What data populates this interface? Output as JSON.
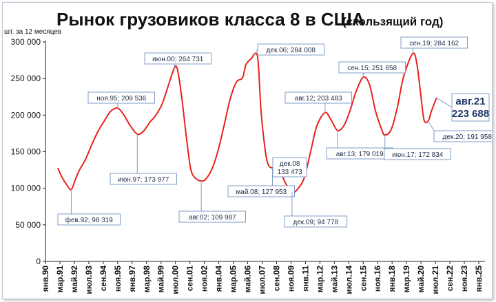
{
  "chart_data": {
    "type": "line",
    "title": "Рынок грузовиков класса 8 в США",
    "subtitle": "(скользящий год)",
    "ylabel": "шт. за 12 месяцев",
    "xlabel": "",
    "ylim": [
      0,
      300000
    ],
    "yticks": [
      "0",
      "50 000",
      "100 000",
      "150 000",
      "200 000",
      "250 000",
      "300 000"
    ],
    "xlim": [
      "1990-01",
      "2025-07"
    ],
    "xticks": [
      "янв.90",
      "мар.91",
      "май.92",
      "июл.93",
      "сен.94",
      "ноя.95",
      "янв.97",
      "мар.98",
      "май.99",
      "июл.00",
      "сен.01",
      "ноя.02",
      "янв.04",
      "мар.05",
      "май.06",
      "июл.07",
      "сен.08",
      "ноя.09",
      "янв.11",
      "мар.12",
      "май.13",
      "июл.14",
      "сен.15",
      "ноя.16",
      "янв.18",
      "мар.19",
      "май.20",
      "июл.21",
      "сен.22",
      "ноя.23",
      "янв.25"
    ],
    "grid": false,
    "legend": "none",
    "series": [
      {
        "color": "#e8211a",
        "points": [
          [
            "1991-01",
            128000
          ],
          [
            "1991-05",
            115000
          ],
          [
            "1991-10",
            104000
          ],
          [
            "1992-02",
            98319
          ],
          [
            "1992-06",
            112000
          ],
          [
            "1992-10",
            125000
          ],
          [
            "1993-04",
            140000
          ],
          [
            "1993-10",
            160000
          ],
          [
            "1994-04",
            178000
          ],
          [
            "1994-10",
            192000
          ],
          [
            "1995-04",
            205000
          ],
          [
            "1995-11",
            209536
          ],
          [
            "1996-05",
            200000
          ],
          [
            "1996-11",
            186000
          ],
          [
            "1997-06",
            173977
          ],
          [
            "1997-12",
            178000
          ],
          [
            "1998-06",
            190000
          ],
          [
            "1998-12",
            200000
          ],
          [
            "1999-06",
            215000
          ],
          [
            "1999-12",
            240000
          ],
          [
            "2000-06",
            264731
          ],
          [
            "2000-09",
            262000
          ],
          [
            "2001-01",
            225000
          ],
          [
            "2001-06",
            165000
          ],
          [
            "2001-10",
            125000
          ],
          [
            "2002-03",
            113000
          ],
          [
            "2002-08",
            109987
          ],
          [
            "2002-12",
            112000
          ],
          [
            "2003-06",
            125000
          ],
          [
            "2003-12",
            150000
          ],
          [
            "2004-06",
            185000
          ],
          [
            "2004-12",
            222000
          ],
          [
            "2005-06",
            245000
          ],
          [
            "2005-12",
            251000
          ],
          [
            "2006-03",
            268000
          ],
          [
            "2006-06",
            274000
          ],
          [
            "2006-09",
            278000
          ],
          [
            "2006-12",
            284008
          ],
          [
            "2007-03",
            275000
          ],
          [
            "2007-06",
            205000
          ],
          [
            "2007-10",
            152000
          ],
          [
            "2008-01",
            132000
          ],
          [
            "2008-05",
            127953
          ],
          [
            "2008-09",
            133000
          ],
          [
            "2008-12",
            133473
          ],
          [
            "2009-04",
            112000
          ],
          [
            "2009-12",
            94778
          ],
          [
            "2010-06",
            100000
          ],
          [
            "2010-12",
            115000
          ],
          [
            "2011-06",
            150000
          ],
          [
            "2011-12",
            185000
          ],
          [
            "2012-08",
            203483
          ],
          [
            "2013-02",
            193000
          ],
          [
            "2013-08",
            179019
          ],
          [
            "2014-02",
            185000
          ],
          [
            "2014-08",
            205000
          ],
          [
            "2015-02",
            232000
          ],
          [
            "2015-09",
            251658
          ],
          [
            "2016-03",
            242000
          ],
          [
            "2016-09",
            205000
          ],
          [
            "2017-03",
            180000
          ],
          [
            "2017-06",
            172834
          ],
          [
            "2017-12",
            180000
          ],
          [
            "2018-06",
            210000
          ],
          [
            "2018-12",
            252000
          ],
          [
            "2019-09",
            284162
          ],
          [
            "2020-01",
            270000
          ],
          [
            "2020-05",
            225000
          ],
          [
            "2020-08",
            193000
          ],
          [
            "2020-12",
            191958
          ],
          [
            "2021-03",
            205000
          ],
          [
            "2021-08",
            223688
          ]
        ]
      }
    ],
    "annotations": [
      {
        "label": "фев.92; 98 319",
        "x": "1992-02",
        "y": 98319
      },
      {
        "label": "ноя.95; 209 536",
        "x": "1995-11",
        "y": 209536
      },
      {
        "label": "июн.97; 173 977",
        "x": "1997-06",
        "y": 173977
      },
      {
        "label": "июн.00; 264 731",
        "x": "2000-06",
        "y": 264731
      },
      {
        "label": "авг.02; 109 987",
        "x": "2002-08",
        "y": 109987
      },
      {
        "label": "дек.06; 284 008",
        "x": "2006-12",
        "y": 284008
      },
      {
        "label": "май.08; 127 953",
        "x": "2008-05",
        "y": 127953
      },
      {
        "label": "дек.08",
        "label2": "133 473",
        "x": "2008-12",
        "y": 133473
      },
      {
        "label": "дек.09; 94 778",
        "x": "2009-12",
        "y": 94778
      },
      {
        "label": "авг.12; 203 483",
        "x": "2012-08",
        "y": 203483
      },
      {
        "label": "авг.13; 179 019",
        "x": "2013-08",
        "y": 179019
      },
      {
        "label": "сен.15; 251 658",
        "x": "2015-09",
        "y": 251658
      },
      {
        "label": "июн.17; 172 834",
        "x": "2017-06",
        "y": 172834
      },
      {
        "label": "сен.19; 284 162",
        "x": "2019-09",
        "y": 284162
      },
      {
        "label": "дек.20; 191 958",
        "x": "2020-12",
        "y": 191958
      }
    ],
    "last_value": {
      "label": "авг.21",
      "value_text": "223 688",
      "x": "2021-08",
      "y": 223688
    }
  }
}
